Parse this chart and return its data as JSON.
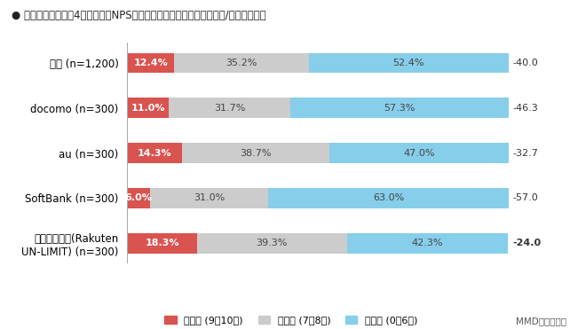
{
  "title": "● 利用している大手4キャリアのNPS（ネット・プロモーター・スコア/顧客推奨度）",
  "categories": [
    "全体 (n=1,200)",
    "docomo (n=300)",
    "au (n=300)",
    "SoftBank (n=300)",
    "楽天モバイル(Rakuten\nUN-LIMIT) (n=300)"
  ],
  "promoter": [
    12.4,
    11.0,
    14.3,
    6.0,
    18.3
  ],
  "neutral": [
    35.2,
    31.7,
    38.7,
    31.0,
    39.3
  ],
  "detractor": [
    52.4,
    57.3,
    47.0,
    63.0,
    42.3
  ],
  "nps_score": [
    -40.0,
    -46.3,
    -32.7,
    -57.0,
    -24.0
  ],
  "nps_bold": [
    false,
    false,
    false,
    false,
    true
  ],
  "color_promoter": "#d9534f",
  "color_neutral": "#cccccc",
  "color_detractor": "#87ceeb",
  "legend_labels": [
    "推奨者 (9〜10点)",
    "中立者 (7〜8点)",
    "批判者 (0〜6点)"
  ],
  "footer": "MMD研究所調べ",
  "bg_color": "#ffffff"
}
